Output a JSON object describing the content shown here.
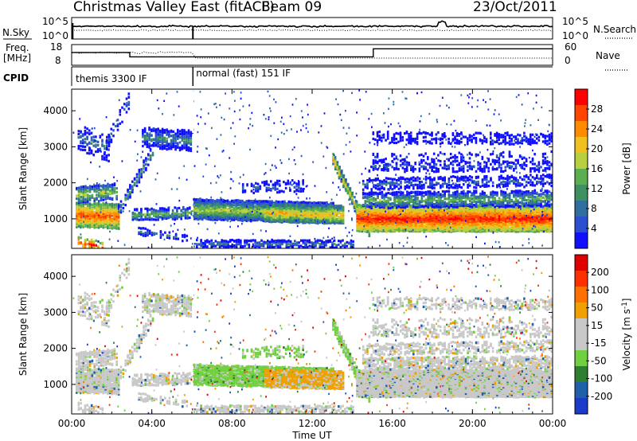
{
  "header": {
    "station": "Christmas Valley East (fitACF)",
    "beam": "Beam 09",
    "date": "23/Oct/2011"
  },
  "noise_panel": {
    "left_label": "N.Sky",
    "right_label": "N.Search",
    "left_ticks": [
      "10^5",
      "10^0"
    ],
    "right_ticks": [
      "10^5",
      "10^0"
    ]
  },
  "freq_panel": {
    "left_label_1": "Freq.",
    "left_label_2": "[MHz]",
    "right_label": "Nave",
    "left_ticks": [
      "18",
      "8"
    ],
    "right_ticks": [
      "60",
      "0"
    ]
  },
  "cpid_panel": {
    "label": "CPID",
    "modes": [
      {
        "name": "themis 3300 IF",
        "start_hour": 0.0,
        "end_hour": 6.05
      },
      {
        "name": "normal (fast) 151 IF",
        "start_hour": 6.05,
        "end_hour": 24.0
      }
    ]
  },
  "time_axis": {
    "label": "Time UT",
    "ticks": [
      "00:00",
      "04:00",
      "08:00",
      "12:00",
      "16:00",
      "20:00",
      "00:00"
    ],
    "range_hours": [
      0,
      24
    ]
  },
  "chart_data": [
    {
      "type": "heatmap",
      "name": "power",
      "xlabel": "Time UT",
      "ylabel": "Slant Range [km]",
      "xlim": [
        0,
        24
      ],
      "ylim": [
        180,
        4600
      ],
      "yticks": [
        "1000",
        "2000",
        "3000",
        "4000"
      ],
      "colorbar": {
        "label": "Power [dB]",
        "ticks": [
          "28",
          "24",
          "20",
          "16",
          "12",
          "8",
          "4"
        ],
        "range": [
          0,
          32
        ],
        "colors": [
          "#1010ff",
          "#2a50d0",
          "#2f6fa0",
          "#3f9060",
          "#5ab050",
          "#b8d040",
          "#f0c020",
          "#ff8c00",
          "#ff4500",
          "#ff0000"
        ]
      }
    },
    {
      "type": "heatmap",
      "name": "velocity",
      "xlabel": "Time UT",
      "ylabel": "Slant Range [km]",
      "xlim": [
        0,
        24
      ],
      "ylim": [
        180,
        4600
      ],
      "yticks": [
        "1000",
        "2000",
        "3000",
        "4000"
      ],
      "colorbar": {
        "label": "Velocity [m s-1]",
        "ticks": [
          "200",
          "100",
          "50",
          "15",
          "-15",
          "-50",
          "-100",
          "-200"
        ],
        "range": [
          -250,
          250
        ],
        "colors": [
          "#1a3cc8",
          "#2060a8",
          "#2e8030",
          "#70d040",
          "#c8c8c8",
          "#c8c8c8",
          "#f0a000",
          "#ff7000",
          "#ff3000",
          "#e00000"
        ]
      }
    }
  ]
}
